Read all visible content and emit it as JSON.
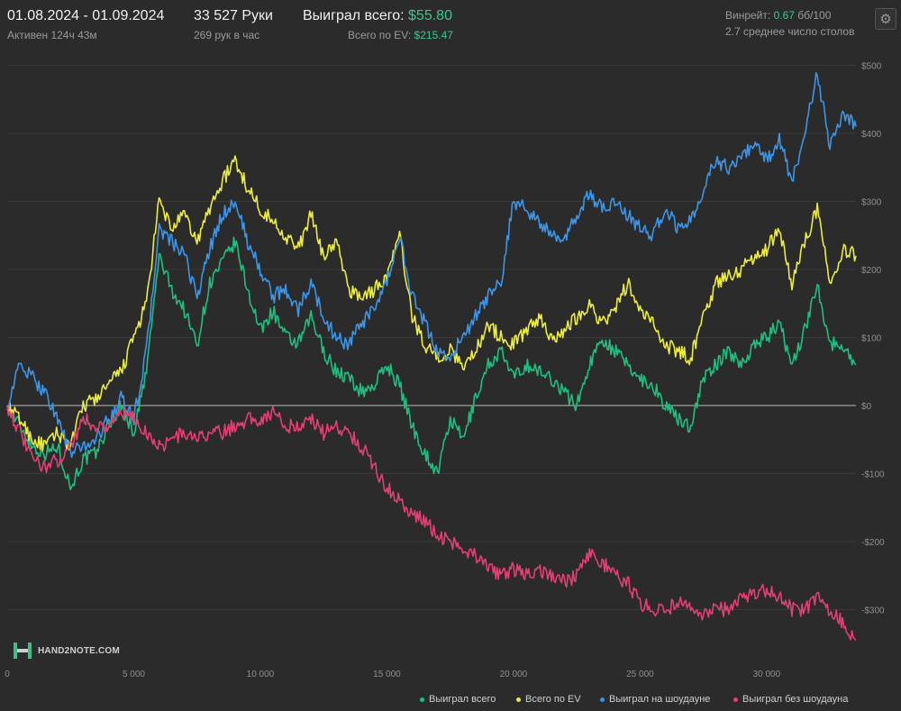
{
  "header": {
    "date_range": "01.08.2024 - 01.09.2024",
    "active": "Активен 124ч 43м",
    "hands": "33 527 Руки",
    "hands_per_hour": "269 рук в час",
    "won_total_label": "Выиграл всего:",
    "won_total_value": "$55.80",
    "ev_label": "Всего по EV:",
    "ev_value": "$215.47",
    "winrate_label": "Винрейт:",
    "winrate_value": "0.67",
    "winrate_unit": "бб/100",
    "avg_tables": "2.7 среднее число столов"
  },
  "icons": {
    "settings": "gear-icon",
    "logo": "hand2note-logo"
  },
  "logo_text": "HAND2NOTE.COM",
  "chart_data": {
    "type": "line",
    "xlim": [
      0,
      33527
    ],
    "ylim": [
      -350,
      520
    ],
    "x_ticks": [
      0,
      5000,
      10000,
      15000,
      20000,
      25000,
      30000
    ],
    "x_tick_labels": [
      "0",
      "5 000",
      "10 000",
      "15 000",
      "20 000",
      "25 000",
      "30 000"
    ],
    "y_ticks": [
      500,
      400,
      300,
      200,
      100,
      0,
      -100,
      -200,
      -300
    ],
    "y_tick_labels": [
      "$500",
      "$400",
      "$300",
      "$200",
      "$100",
      "$0",
      "-$100",
      "-$200",
      "-$300"
    ],
    "grid": true,
    "legend_position": "bottom-right",
    "series": [
      {
        "name": "Выиграл всего",
        "color": "#1fc07f",
        "x": [
          0,
          500,
          1000,
          1500,
          2000,
          2500,
          3000,
          3500,
          4000,
          4500,
          5000,
          5500,
          6000,
          6500,
          7000,
          7500,
          8000,
          8500,
          9000,
          9500,
          10000,
          10500,
          11000,
          11500,
          12000,
          12500,
          13000,
          13500,
          14000,
          14500,
          15000,
          15500,
          16000,
          16500,
          17000,
          17500,
          18000,
          18500,
          19000,
          19500,
          20000,
          20500,
          21000,
          21500,
          22000,
          22500,
          23000,
          23500,
          24000,
          24500,
          25000,
          25500,
          26000,
          26500,
          27000,
          27500,
          28000,
          28500,
          29000,
          29500,
          30000,
          30500,
          31000,
          31500,
          32000,
          32500,
          33000,
          33527
        ],
        "y": [
          0,
          -30,
          -60,
          -70,
          -60,
          -120,
          -80,
          -70,
          -30,
          0,
          -40,
          50,
          220,
          170,
          140,
          90,
          180,
          210,
          240,
          170,
          110,
          140,
          100,
          90,
          130,
          80,
          50,
          40,
          20,
          30,
          60,
          30,
          -30,
          -70,
          -100,
          -20,
          -50,
          10,
          60,
          80,
          40,
          60,
          50,
          40,
          20,
          0,
          60,
          100,
          80,
          60,
          40,
          30,
          0,
          -20,
          -30,
          40,
          60,
          80,
          60,
          90,
          100,
          120,
          60,
          110,
          180,
          90,
          90,
          60
        ]
      },
      {
        "name": "Всего по EV",
        "color": "#ecec3c",
        "x": [
          0,
          500,
          1000,
          1500,
          2000,
          2500,
          3000,
          3500,
          4000,
          4500,
          5000,
          5500,
          6000,
          6500,
          7000,
          7500,
          8000,
          8500,
          9000,
          9500,
          10000,
          10500,
          11000,
          11500,
          12000,
          12500,
          13000,
          13500,
          14000,
          14500,
          15000,
          15500,
          16000,
          16500,
          17000,
          17500,
          18000,
          18500,
          19000,
          19500,
          20000,
          20500,
          21000,
          21500,
          22000,
          22500,
          23000,
          23500,
          24000,
          24500,
          25000,
          25500,
          26000,
          26500,
          27000,
          27500,
          28000,
          28500,
          29000,
          29500,
          30000,
          30500,
          31000,
          31500,
          32000,
          32500,
          33000,
          33527
        ],
        "y": [
          0,
          -20,
          -50,
          -60,
          -40,
          -60,
          0,
          10,
          30,
          50,
          100,
          150,
          300,
          260,
          280,
          240,
          290,
          330,
          360,
          320,
          290,
          270,
          250,
          230,
          280,
          220,
          240,
          170,
          160,
          170,
          190,
          250,
          130,
          90,
          70,
          80,
          60,
          80,
          120,
          100,
          90,
          110,
          130,
          100,
          110,
          130,
          150,
          120,
          140,
          180,
          140,
          120,
          90,
          80,
          70,
          130,
          180,
          190,
          200,
          220,
          230,
          260,
          180,
          240,
          290,
          180,
          230,
          220
        ]
      },
      {
        "name": "Выиграл на шоудауне",
        "color": "#3b95e8",
        "x": [
          0,
          500,
          1000,
          1500,
          2000,
          2500,
          3000,
          3500,
          4000,
          4500,
          5000,
          5500,
          6000,
          6500,
          7000,
          7500,
          8000,
          8500,
          9000,
          9500,
          10000,
          10500,
          11000,
          11500,
          12000,
          12500,
          13000,
          13500,
          14000,
          14500,
          15000,
          15500,
          16000,
          16500,
          17000,
          17500,
          18000,
          18500,
          19000,
          19500,
          20000,
          20500,
          21000,
          21500,
          22000,
          22500,
          23000,
          23500,
          24000,
          24500,
          25000,
          25500,
          26000,
          26500,
          27000,
          27500,
          28000,
          28500,
          29000,
          29500,
          30000,
          30500,
          31000,
          31500,
          32000,
          32500,
          33000,
          33527
        ],
        "y": [
          0,
          60,
          40,
          20,
          -20,
          -70,
          -60,
          -50,
          -20,
          10,
          -20,
          80,
          260,
          240,
          220,
          160,
          230,
          280,
          300,
          240,
          200,
          160,
          170,
          140,
          180,
          130,
          100,
          90,
          120,
          140,
          180,
          250,
          160,
          120,
          80,
          70,
          100,
          130,
          160,
          180,
          300,
          290,
          270,
          250,
          240,
          280,
          310,
          290,
          300,
          280,
          260,
          250,
          290,
          260,
          270,
          320,
          360,
          350,
          370,
          380,
          360,
          390,
          330,
          400,
          490,
          380,
          430,
          410
        ]
      },
      {
        "name": "Выиграл без шоудауна",
        "color": "#e43f72",
        "x": [
          0,
          500,
          1000,
          1500,
          2000,
          2500,
          3000,
          3500,
          4000,
          4500,
          5000,
          5500,
          6000,
          6500,
          7000,
          7500,
          8000,
          8500,
          9000,
          9500,
          10000,
          10500,
          11000,
          11500,
          12000,
          12500,
          13000,
          13500,
          14000,
          14500,
          15000,
          15500,
          16000,
          16500,
          17000,
          17500,
          18000,
          18500,
          19000,
          19500,
          20000,
          20500,
          21000,
          21500,
          22000,
          22500,
          23000,
          23500,
          24000,
          24500,
          25000,
          25500,
          26000,
          26500,
          27000,
          27500,
          28000,
          28500,
          29000,
          29500,
          30000,
          30500,
          31000,
          31500,
          32000,
          32500,
          33000,
          33527
        ],
        "y": [
          0,
          -40,
          -80,
          -90,
          -80,
          -60,
          -20,
          -30,
          -30,
          -10,
          -20,
          -40,
          -60,
          -50,
          -40,
          -50,
          -40,
          -40,
          -30,
          -20,
          -20,
          -10,
          -30,
          -30,
          -20,
          -40,
          -30,
          -40,
          -60,
          -90,
          -120,
          -140,
          -160,
          -170,
          -190,
          -200,
          -210,
          -220,
          -240,
          -250,
          -240,
          -250,
          -240,
          -250,
          -260,
          -250,
          -220,
          -230,
          -250,
          -260,
          -290,
          -300,
          -300,
          -290,
          -300,
          -310,
          -300,
          -300,
          -280,
          -280,
          -270,
          -280,
          -300,
          -300,
          -280,
          -300,
          -320,
          -345
        ]
      }
    ]
  }
}
